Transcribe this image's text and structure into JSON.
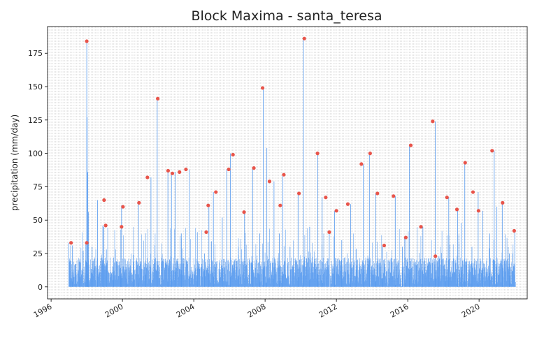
{
  "chart_data": {
    "type": "line",
    "title": "Block Maxima - santa_teresa",
    "xlabel": "",
    "ylabel": "precipitation (mm/day)",
    "xlim": [
      1995.8,
      2022.7
    ],
    "ylim": [
      -9,
      195
    ],
    "x_ticks": [
      1996,
      2000,
      2004,
      2008,
      2012,
      2016,
      2020
    ],
    "x_tick_labels": [
      "1996",
      "2000",
      "2004",
      "2008",
      "2012",
      "2016",
      "2020"
    ],
    "y_ticks": [
      0,
      25,
      50,
      75,
      100,
      125,
      150,
      175
    ],
    "y_tick_labels": [
      "0",
      "25",
      "50",
      "75",
      "100",
      "125",
      "150",
      "175"
    ],
    "grid": "vertical dashed gridlines (monthly)",
    "legend": "none",
    "colors": {
      "series": "#5599ee",
      "maxima": "#e8544a",
      "grid": "#cccccc",
      "frame": "#000000"
    },
    "series": [
      {
        "type": "line",
        "note": "daily precipitation",
        "x": [
          1997.0,
          1997.1,
          1997.2,
          1997.4,
          1997.6,
          1997.8,
          1997.95,
          1998.0,
          1998.02,
          1998.05,
          1998.1,
          1998.3,
          1998.6,
          1998.9,
          1998.95,
          1999.1,
          1999.5,
          1999.9,
          1999.95,
          2000.2,
          2000.6,
          2000.9,
          2001.3,
          2001.6,
          2001.95,
          2002.2,
          2002.55,
          2002.75,
          2002.95,
          2003.3,
          2003.75,
          2004.2,
          2004.6,
          2004.85,
          2005.1,
          2005.6,
          2005.85,
          2006.05,
          2006.5,
          2006.85,
          2007.3,
          2007.7,
          2007.9,
          2008.1,
          2008.5,
          2008.8,
          2009.0,
          2009.4,
          2009.85,
          2010.15,
          2010.5,
          2010.95,
          2011.2,
          2011.6,
          2011.9,
          2012.3,
          2012.8,
          2013.1,
          2013.5,
          2013.85,
          2014.2,
          2014.6,
          2014.9,
          2015.3,
          2015.7,
          2015.9,
          2016.1,
          2016.5,
          2016.85,
          2017.2,
          2017.55,
          2017.75,
          2018.1,
          2018.3,
          2018.8,
          2019.0,
          2019.2,
          2019.6,
          2019.95,
          2020.2,
          2020.6,
          2020.85,
          2021.0,
          2021.3,
          2021.7,
          2022.0
        ],
        "y": [
          33,
          12,
          31,
          8,
          20,
          27,
          33,
          184,
          127,
          86,
          56,
          30,
          65,
          46,
          45,
          28,
          22,
          14,
          61,
          15,
          24,
          63,
          20,
          82,
          141,
          22,
          87,
          85,
          86,
          40,
          88,
          41,
          25,
          62,
          71,
          52,
          88,
          100,
          30,
          56,
          89,
          40,
          149,
          104,
          79,
          40,
          84,
          30,
          70,
          186,
          45,
          100,
          67,
          41,
          57,
          35,
          62,
          28,
          92,
          100,
          70,
          31,
          20,
          68,
          30,
          37,
          106,
          20,
          45,
          18,
          124,
          23,
          20,
          67,
          58,
          48,
          93,
          30,
          71,
          57,
          40,
          102,
          60,
          63,
          25,
          42
        ]
      },
      {
        "type": "scatter",
        "name": "",
        "note": "block maxima",
        "x": [
          1997.12,
          1998.0,
          1998.0,
          1998.97,
          1999.06,
          1999.95,
          2000.03,
          2000.93,
          2001.4,
          2001.98,
          2002.56,
          2002.8,
          2003.2,
          2003.56,
          2004.7,
          2004.81,
          2005.24,
          2005.96,
          2006.2,
          2006.82,
          2007.37,
          2007.86,
          2008.25,
          2008.85,
          2009.05,
          2009.9,
          2010.2,
          2010.94,
          2011.4,
          2011.6,
          2012.0,
          2012.64,
          2013.4,
          2013.89,
          2014.3,
          2014.68,
          2015.2,
          2015.89,
          2016.17,
          2016.74,
          2017.4,
          2017.55,
          2018.2,
          2018.76,
          2019.22,
          2019.66,
          2019.97,
          2020.73,
          2021.32,
          2021.97
        ],
        "y": [
          33,
          184,
          33,
          65,
          46,
          45,
          60,
          63,
          82,
          141,
          87,
          85,
          86,
          88,
          41,
          61,
          71,
          88,
          99,
          56,
          89,
          149,
          79,
          61,
          84,
          70,
          186,
          100,
          67,
          41,
          57,
          62,
          92,
          100,
          70,
          31,
          68,
          37,
          106,
          45,
          124,
          23,
          67,
          58,
          93,
          71,
          57,
          102,
          63,
          42
        ]
      }
    ]
  }
}
